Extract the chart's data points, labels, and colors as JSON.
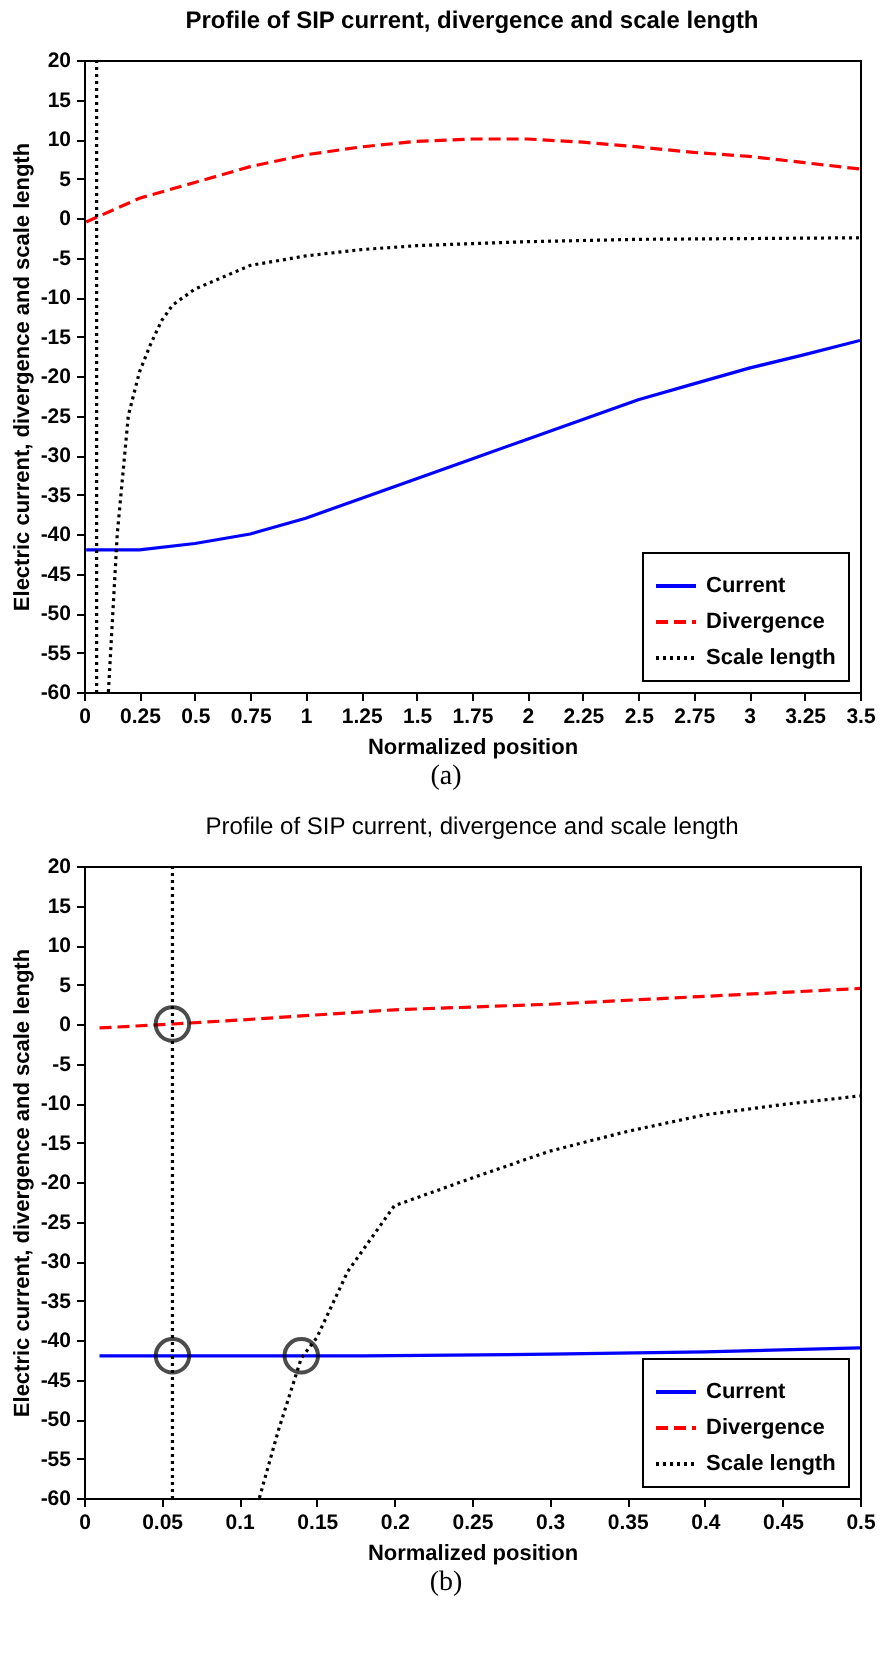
{
  "chart_data": [
    {
      "type": "line",
      "title": "Profile of SIP current, divergence and scale length",
      "xlabel": "Normalized position",
      "ylabel": "Electric current, divergence and scale length",
      "xlim": [
        0,
        3.5
      ],
      "xticks": [
        0,
        0.25,
        0.5,
        0.75,
        1,
        1.25,
        1.5,
        1.75,
        2,
        2.25,
        2.5,
        2.75,
        3,
        3.25,
        3.5
      ],
      "ylim": [
        -60,
        20
      ],
      "yticks": [
        -60,
        -55,
        -50,
        -45,
        -40,
        -35,
        -30,
        -25,
        -20,
        -15,
        -10,
        -5,
        0,
        5,
        10,
        15,
        20
      ],
      "grid": false,
      "legend": "bottom right",
      "annotations": [
        "(a)"
      ],
      "series": [
        {
          "name": "Current",
          "color": "#0000ff",
          "line_style": "solid",
          "x": [
            0.01,
            0.25,
            0.5,
            0.75,
            1,
            1.25,
            1.5,
            1.75,
            2,
            2.25,
            2.5,
            2.75,
            3,
            3.25,
            3.5
          ],
          "values": [
            -42,
            -42,
            -41.2,
            -40,
            -38,
            -35.5,
            -33,
            -30.5,
            -28,
            -25.5,
            -23,
            -21,
            -19,
            -17.3,
            -15.5
          ]
        },
        {
          "name": "Divergence",
          "color": "#ff0000",
          "line_style": "dashed",
          "x": [
            0.01,
            0.25,
            0.5,
            0.75,
            1,
            1.25,
            1.5,
            1.75,
            2,
            2.25,
            2.5,
            2.75,
            3,
            3.25,
            3.5
          ],
          "values": [
            -0.5,
            2.5,
            4.5,
            6.5,
            8,
            9,
            9.7,
            10,
            10,
            9.6,
            9,
            8.3,
            7.8,
            7,
            6.2
          ]
        },
        {
          "name": "Scale length",
          "color": "#000000",
          "line_style": "dotted",
          "x": [
            0.057,
            0.057,
            0.08,
            0.11,
            0.15,
            0.2,
            0.25,
            0.3,
            0.35,
            0.4,
            0.5,
            0.75,
            1,
            1.25,
            1.5,
            2,
            2.5,
            3,
            3.5
          ],
          "values": [
            20,
            -60,
            null,
            -60,
            -40,
            -25,
            -19.5,
            -16,
            -13,
            -11,
            -9,
            -6,
            -4.8,
            -4,
            -3.5,
            -3,
            -2.7,
            -2.6,
            -2.5
          ]
        }
      ]
    },
    {
      "type": "line",
      "title": "Profile of SIP current, divergence and scale length",
      "xlabel": "Normalized position",
      "ylabel": "Electric current, divergence and scale length",
      "xlim": [
        0,
        0.5
      ],
      "xticks": [
        0,
        0.05,
        0.1,
        0.15,
        0.2,
        0.25,
        0.3,
        0.35,
        0.4,
        0.45,
        0.5
      ],
      "ylim": [
        -60,
        20
      ],
      "yticks": [
        -60,
        -55,
        -50,
        -45,
        -40,
        -35,
        -30,
        -25,
        -20,
        -15,
        -10,
        -5,
        0,
        5,
        10,
        15,
        20
      ],
      "grid": false,
      "legend": "bottom right",
      "annotations": [
        "(b)"
      ],
      "series": [
        {
          "name": "Current",
          "color": "#0000ff",
          "line_style": "solid",
          "x": [
            0.01,
            0.1,
            0.18,
            0.3,
            0.4,
            0.5
          ],
          "values": [
            -42,
            -42,
            -42,
            -41.8,
            -41.5,
            -41
          ]
        },
        {
          "name": "Divergence",
          "color": "#ff0000",
          "line_style": "dashed",
          "x": [
            0.01,
            0.057,
            0.1,
            0.2,
            0.3,
            0.4,
            0.5
          ],
          "values": [
            -0.5,
            0,
            0.5,
            1.8,
            2.5,
            3.5,
            4.5
          ]
        },
        {
          "name": "Scale length",
          "color": "#000000",
          "line_style": "dotted",
          "x": [
            0.057,
            0.057,
            0.08,
            0.113,
            0.125,
            0.14,
            0.15,
            0.17,
            0.2,
            0.25,
            0.3,
            0.35,
            0.4,
            0.45,
            0.5
          ],
          "values": [
            20,
            -60,
            null,
            -60,
            -51.6,
            -42.3,
            -39.7,
            -31.3,
            -23,
            -19.5,
            -16.1,
            -13.6,
            -11.5,
            -10.2,
            -9.1
          ]
        },
        {
          "type": "scatter",
          "color": "#000000",
          "marker": "circle",
          "x": [
            0.057,
            0.057,
            0.14
          ],
          "values": [
            0,
            -42,
            -42
          ]
        }
      ]
    }
  ]
}
